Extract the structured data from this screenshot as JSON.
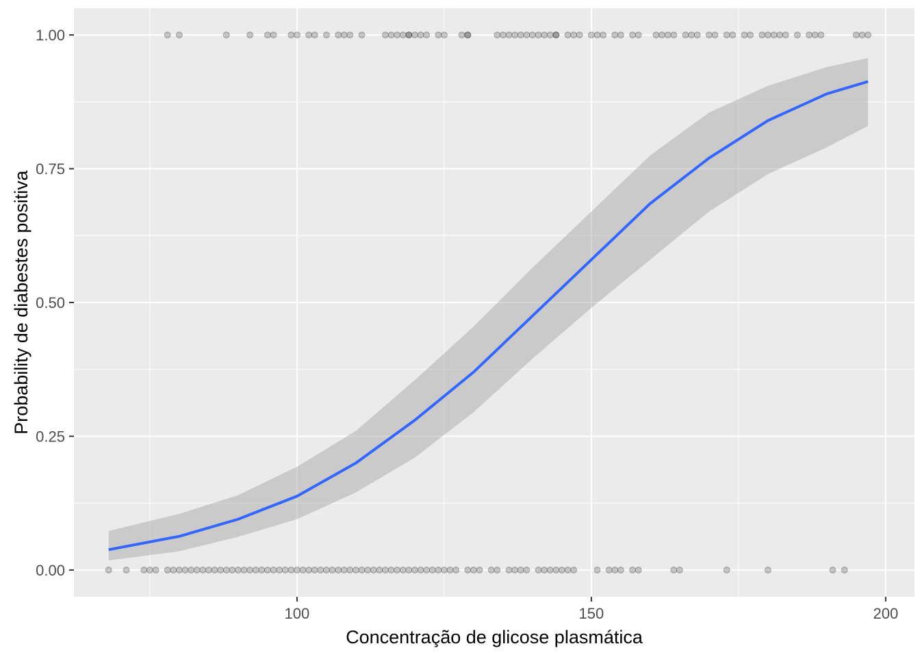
{
  "chart_data": {
    "type": "scatter",
    "title": "",
    "xlabel": "Concentração de glicose plasmática",
    "ylabel": "Probability de diabestes positiva",
    "xlim": [
      62.1,
      204.9
    ],
    "ylim": [
      -0.05,
      1.05
    ],
    "x_ticks": [
      100,
      150,
      200
    ],
    "x_tick_labels": [
      "100",
      "150",
      "200"
    ],
    "y_ticks": [
      0,
      0.25,
      0.5,
      0.75,
      1
    ],
    "y_tick_labels": [
      "0.00",
      "0.25",
      "0.50",
      "0.75",
      "1.00"
    ],
    "grid": true,
    "colors": {
      "panel_bg": "#ebebeb",
      "grid": "#ffffff",
      "fit_line": "#3366ff",
      "ribbon": "#999999",
      "points": "#000000"
    },
    "points_y1": [
      78,
      80,
      88,
      92,
      95,
      96,
      99,
      100,
      102,
      103,
      105,
      107,
      108,
      109,
      111,
      115,
      116,
      117,
      118,
      119,
      119,
      120,
      121,
      122,
      124,
      125,
      128,
      129,
      129,
      134,
      135,
      136,
      137,
      138,
      139,
      140,
      141,
      142,
      143,
      144,
      144,
      146,
      147,
      148,
      150,
      151,
      152,
      154,
      155,
      157,
      158,
      161,
      162,
      163,
      164,
      166,
      167,
      168,
      170,
      171,
      173,
      174,
      176,
      177,
      179,
      180,
      181,
      182,
      183,
      185,
      187,
      188,
      189,
      195,
      196,
      197
    ],
    "points_y0": [
      68,
      71,
      74,
      75,
      76,
      78,
      79,
      80,
      81,
      82,
      83,
      84,
      85,
      86,
      87,
      88,
      89,
      90,
      91,
      92,
      93,
      94,
      95,
      96,
      97,
      98,
      99,
      100,
      101,
      102,
      103,
      104,
      105,
      106,
      107,
      108,
      109,
      110,
      111,
      112,
      113,
      114,
      115,
      116,
      117,
      118,
      119,
      120,
      121,
      122,
      123,
      124,
      125,
      126,
      127,
      129,
      130,
      131,
      133,
      134,
      136,
      137,
      138,
      139,
      141,
      142,
      143,
      144,
      145,
      146,
      147,
      151,
      153,
      154,
      155,
      157,
      158,
      164,
      165,
      173,
      180,
      191,
      193
    ],
    "fit": {
      "x": [
        68,
        80,
        90,
        100,
        110,
        120,
        130,
        140,
        150,
        160,
        170,
        180,
        190,
        197
      ],
      "y": [
        0.038,
        0.063,
        0.095,
        0.138,
        0.2,
        0.28,
        0.37,
        0.475,
        0.58,
        0.685,
        0.77,
        0.84,
        0.89,
        0.913
      ],
      "lower": [
        0.018,
        0.035,
        0.062,
        0.095,
        0.145,
        0.21,
        0.295,
        0.395,
        0.49,
        0.58,
        0.67,
        0.74,
        0.79,
        0.83
      ],
      "upper": [
        0.073,
        0.105,
        0.14,
        0.193,
        0.26,
        0.355,
        0.455,
        0.565,
        0.67,
        0.775,
        0.855,
        0.905,
        0.94,
        0.957
      ]
    }
  }
}
